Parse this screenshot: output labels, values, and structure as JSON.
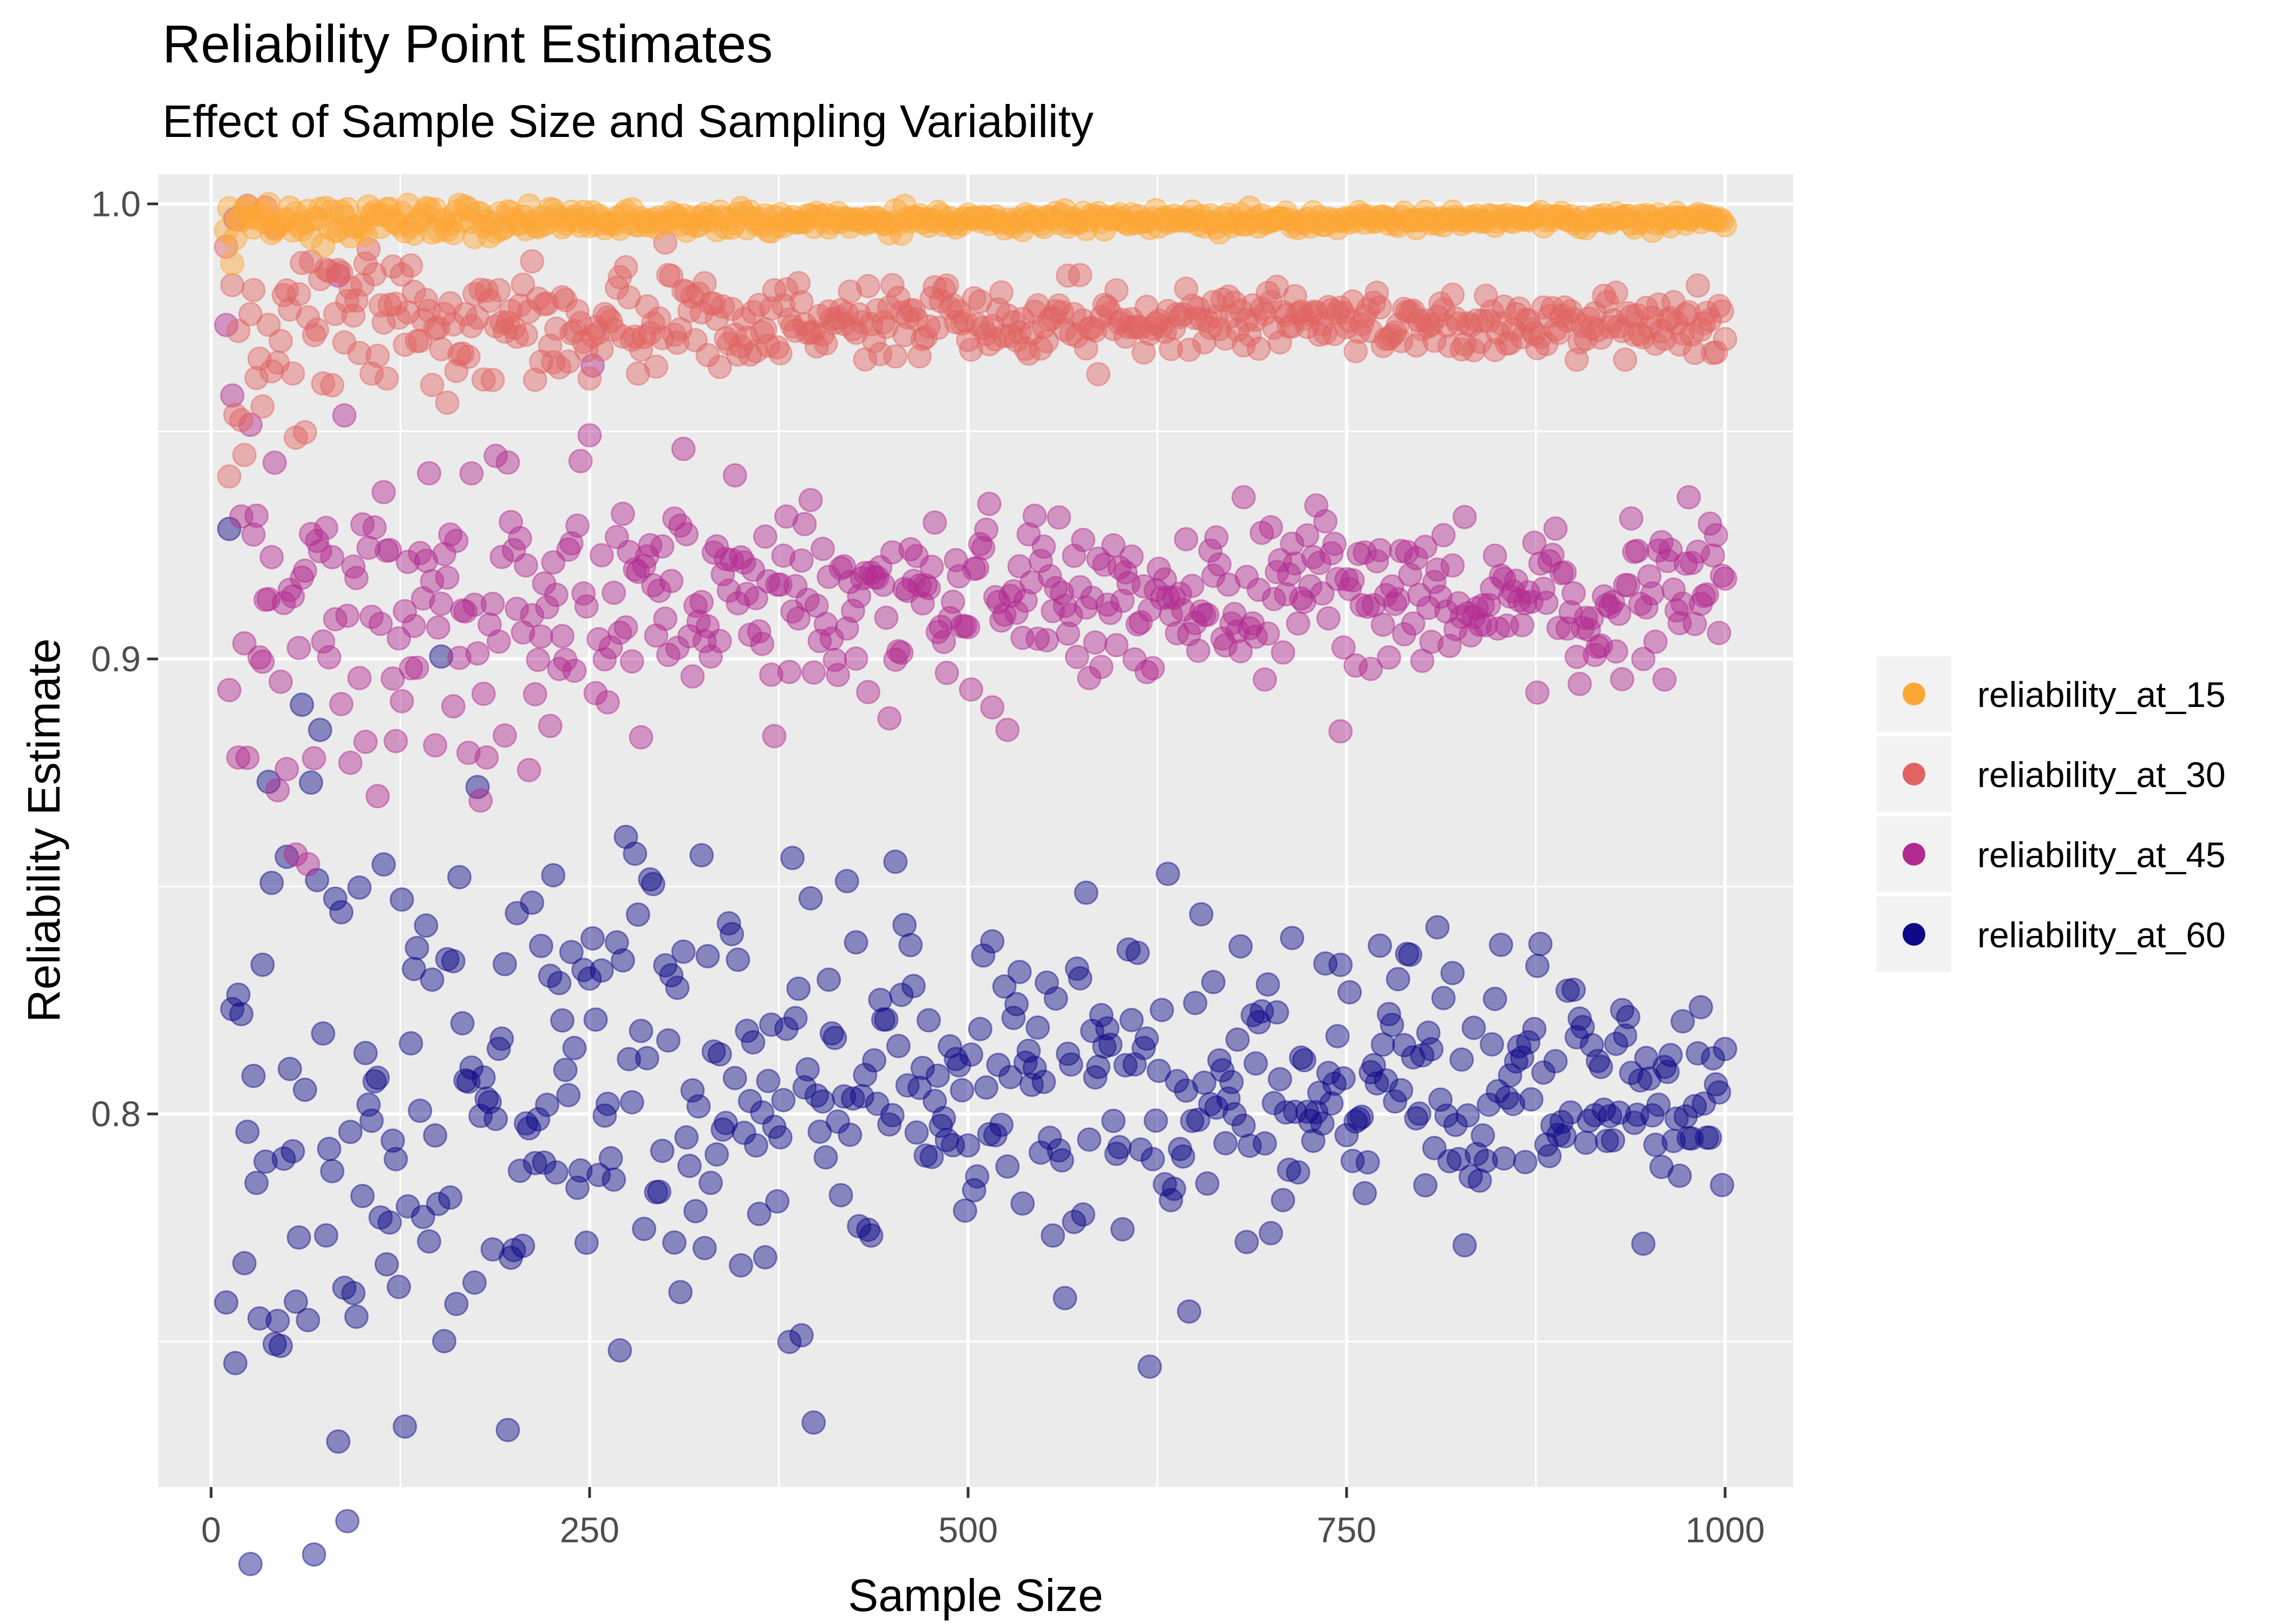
{
  "chart_data": {
    "type": "scatter",
    "title": "Reliability Point Estimates",
    "subtitle": "Effect of Sample Size and Sampling Variability",
    "xlabel": "Sample Size",
    "ylabel": "Reliability Estimate",
    "xlim": [
      -35,
      1045
    ],
    "ylim": [
      0.718,
      1.0065
    ],
    "x_ticks": [
      0,
      250,
      500,
      750,
      1000
    ],
    "x_tick_labels": [
      "0",
      "250",
      "500",
      "750",
      "1000"
    ],
    "y_ticks": [
      0.8,
      0.9,
      1.0
    ],
    "y_tick_labels": [
      "0.8",
      "0.9",
      "1.0"
    ],
    "y_minor_ticks": [
      0.75,
      0.85,
      0.95
    ],
    "x_minor_ticks": [
      125,
      375,
      625,
      875
    ],
    "grid": true,
    "legend_position": "right",
    "panel_background": "#EBEBEB",
    "grid_color": "#FFFFFF",
    "point_alpha": 0.45,
    "sample_size_range": [
      10,
      1000
    ],
    "sample_size_step": 2,
    "series": [
      {
        "name": "reliability_at_15",
        "color": "#FCA636",
        "center": 0.9965,
        "spread_at_min_n": 0.012,
        "spread_at_max_n": 0.0018
      },
      {
        "name": "reliability_at_30",
        "color": "#E16462",
        "center": 0.9735,
        "spread_at_min_n": 0.04,
        "spread_at_max_n": 0.0075
      },
      {
        "name": "reliability_at_45",
        "color": "#B12A90",
        "center": 0.9135,
        "spread_at_min_n": 0.12,
        "spread_at_max_n": 0.018
      },
      {
        "name": "reliability_at_60",
        "color": "#0D0887",
        "center": 0.806,
        "spread_at_min_n": 0.23,
        "spread_at_max_n": 0.032
      }
    ]
  }
}
